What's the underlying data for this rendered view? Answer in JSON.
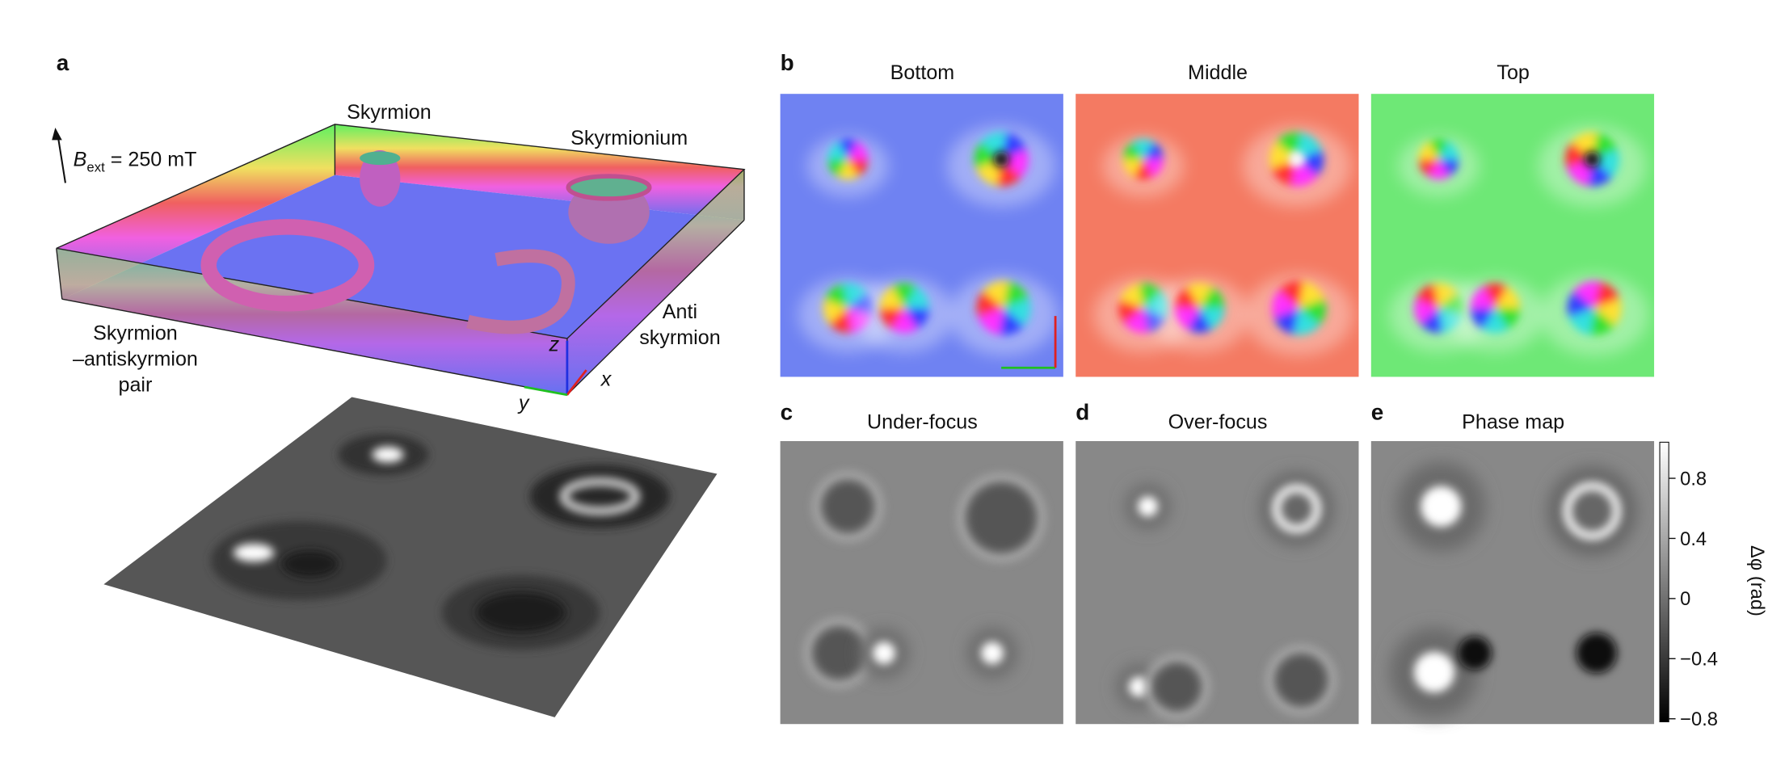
{
  "panels": {
    "a": {
      "label": "a",
      "field": {
        "symbol": "B",
        "subscript": "ext",
        "rest": " = 250 mT"
      },
      "skyrmion": "Skyrmion",
      "skyrmionium": "Skyrmionium",
      "anti": [
        "Anti",
        "skyrmion"
      ],
      "pair": [
        "Skyrmion",
        "–antiskyrmion",
        "pair"
      ],
      "axes": {
        "z": "z",
        "x": "x",
        "y": "y"
      }
    },
    "b": {
      "label": "b",
      "titles": [
        "Bottom",
        "Middle",
        "Top"
      ]
    },
    "c": {
      "label": "c",
      "title": "Under-focus"
    },
    "d": {
      "label": "d",
      "title": "Over-focus"
    },
    "e": {
      "label": "e",
      "title": "Phase map"
    }
  },
  "colorbar": {
    "label": "Δφ (rad)",
    "lim": [
      -0.82,
      1.04
    ],
    "ticks": [
      0.8,
      0.4,
      0,
      {
        "value": -0.4,
        "label": "−0.4"
      },
      {
        "value": -0.8,
        "label": "−0.8"
      }
    ]
  }
}
